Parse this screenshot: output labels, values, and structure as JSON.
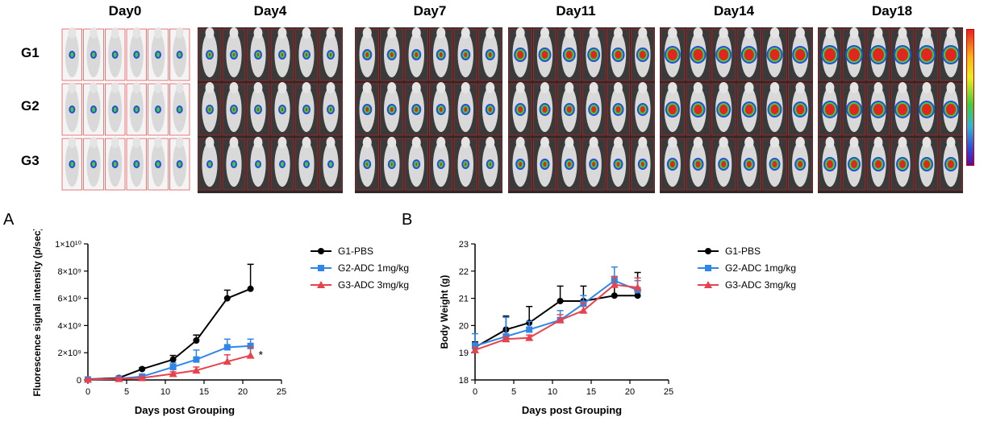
{
  "imaging": {
    "days": [
      "Day0",
      "Day4",
      "Day7",
      "Day11",
      "Day14",
      "Day18"
    ],
    "groups": [
      "G1",
      "G2",
      "G3"
    ]
  },
  "panel_labels": {
    "a": "A",
    "b": "B"
  },
  "chart_data": [
    {
      "type": "line",
      "ylabel": "Fluorescence signal intensity (p/sec)",
      "xlabel": "Days post Grouping",
      "xlim": [
        0,
        25
      ],
      "xticks": [
        0,
        5,
        10,
        15,
        20,
        25
      ],
      "ylim": [
        0,
        10
      ],
      "y_scale_note": "×10^9 (top tick ×10^10)",
      "ytick_labels": [
        "0",
        "2×10⁹",
        "4×10⁹",
        "6×10⁹",
        "8×10⁹",
        "1×10¹⁰"
      ],
      "yticks": [
        0,
        2,
        4,
        6,
        8,
        10
      ],
      "annotation": "*",
      "legend_position": "right",
      "series": [
        {
          "name": "G1-PBS",
          "color": "#000000",
          "marker": "circle",
          "x": [
            0,
            4,
            7,
            11,
            14,
            18,
            21
          ],
          "y": [
            0.05,
            0.15,
            0.8,
            1.5,
            2.9,
            6.0,
            6.7
          ],
          "err": [
            0.02,
            0.05,
            0.1,
            0.3,
            0.4,
            0.6,
            1.8
          ]
        },
        {
          "name": "G2-ADC 1mg/kg",
          "color": "#2f86e8",
          "marker": "square",
          "x": [
            0,
            4,
            7,
            11,
            14,
            18,
            21
          ],
          "y": [
            0.03,
            0.1,
            0.25,
            0.95,
            1.5,
            2.4,
            2.5
          ],
          "err": [
            0.02,
            0.05,
            0.08,
            0.3,
            0.7,
            0.6,
            0.5
          ]
        },
        {
          "name": "G3-ADC 3mg/kg",
          "color": "#e8424c",
          "marker": "triangle",
          "x": [
            0,
            4,
            7,
            11,
            14,
            18,
            21
          ],
          "y": [
            0.03,
            0.08,
            0.15,
            0.45,
            0.7,
            1.35,
            1.8
          ],
          "err": [
            0.02,
            0.04,
            0.05,
            0.15,
            0.25,
            0.5,
            0.6
          ]
        }
      ]
    },
    {
      "type": "line",
      "ylabel": "Body Weight (g)",
      "xlabel": "Days post Grouping",
      "xlim": [
        0,
        25
      ],
      "xticks": [
        0,
        5,
        10,
        15,
        20,
        25
      ],
      "ylim": [
        18,
        23
      ],
      "yticks": [
        18,
        19,
        20,
        21,
        22,
        23
      ],
      "legend_position": "right",
      "series": [
        {
          "name": "G1-PBS",
          "color": "#000000",
          "marker": "circle",
          "x": [
            0,
            4,
            7,
            11,
            14,
            18,
            21
          ],
          "y": [
            19.2,
            19.85,
            20.1,
            20.9,
            20.9,
            21.1,
            21.1
          ],
          "err": [
            0.2,
            0.5,
            0.6,
            0.55,
            0.55,
            0.7,
            0.85
          ]
        },
        {
          "name": "G2-ADC 1mg/kg",
          "color": "#2f86e8",
          "marker": "square",
          "x": [
            0,
            4,
            7,
            11,
            14,
            18,
            21
          ],
          "y": [
            19.25,
            19.6,
            19.85,
            20.2,
            20.8,
            21.65,
            21.3
          ],
          "err": [
            0.45,
            0.7,
            0.3,
            0.35,
            0.3,
            0.5,
            0.35
          ]
        },
        {
          "name": "G3-ADC 3mg/kg",
          "color": "#e8424c",
          "marker": "triangle",
          "x": [
            0,
            4,
            7,
            11,
            14,
            18,
            21
          ],
          "y": [
            19.1,
            19.5,
            19.55,
            20.2,
            20.55,
            21.5,
            21.4
          ],
          "err": [
            0.1,
            0.1,
            0.1,
            0.2,
            0.3,
            0.3,
            0.35
          ]
        }
      ]
    }
  ]
}
